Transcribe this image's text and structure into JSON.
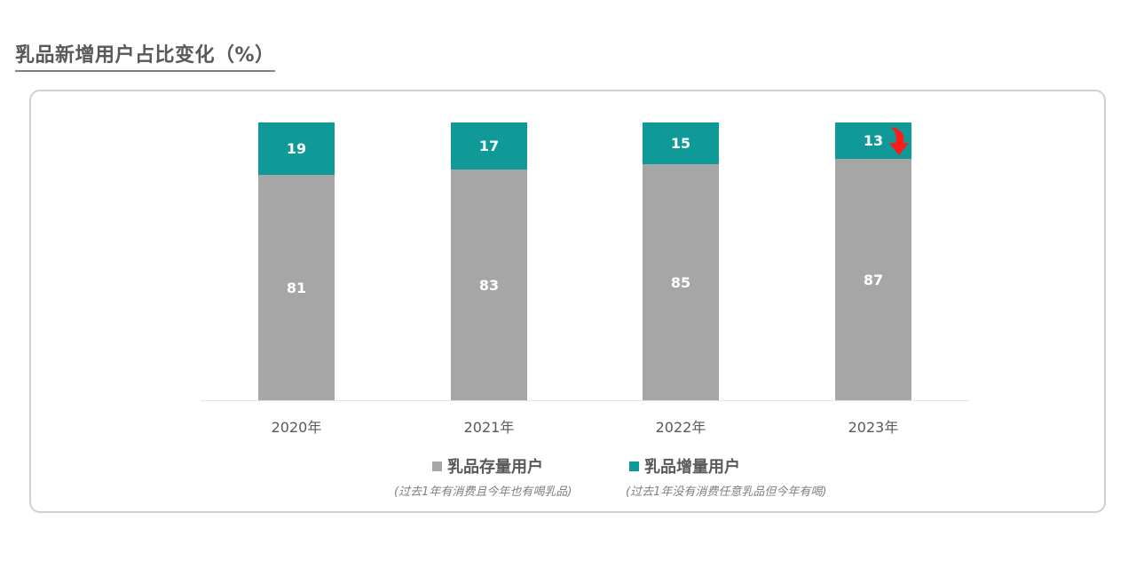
{
  "title": "乳品新增用户占比变化（%）",
  "colors": {
    "stock": "#a6a6a6",
    "new": "#0f9a98",
    "arrow": "#ff1a1a",
    "card_border": "#d0d0d0",
    "text": "#595959"
  },
  "legend": {
    "items": [
      {
        "label": "乳品存量用户",
        "note": "(过去1年有消费且今年也有喝乳品)",
        "color": "#a6a6a6"
      },
      {
        "label": "乳品增量用户",
        "note": "(过去1年没有消费任意乳品但今年有喝)",
        "color": "#0f9a98"
      }
    ]
  },
  "annotation": {
    "icon": "curved-down-arrow-icon",
    "target": "2023年 乳品增量用户",
    "color": "#ff1a1a"
  },
  "chart_data": {
    "type": "bar",
    "stacked": true,
    "title": "乳品新增用户占比变化（%）",
    "xlabel": "",
    "ylabel": "",
    "ylim": [
      0,
      100
    ],
    "grid": false,
    "legend_position": "bottom",
    "categories": [
      "2020年",
      "2021年",
      "2022年",
      "2023年"
    ],
    "series": [
      {
        "name": "乳品存量用户",
        "note": "(过去1年有消费且今年也有喝乳品)",
        "values": [
          81,
          83,
          85,
          87
        ],
        "color": "#a6a6a6"
      },
      {
        "name": "乳品增量用户",
        "note": "(过去1年没有消费任意乳品但今年有喝)",
        "values": [
          19,
          17,
          15,
          13
        ],
        "color": "#0f9a98"
      }
    ],
    "data_labels": true,
    "annotations": [
      {
        "type": "down-arrow",
        "category": "2023年",
        "series": "乳品增量用户",
        "meaning": "decreasing"
      }
    ]
  }
}
